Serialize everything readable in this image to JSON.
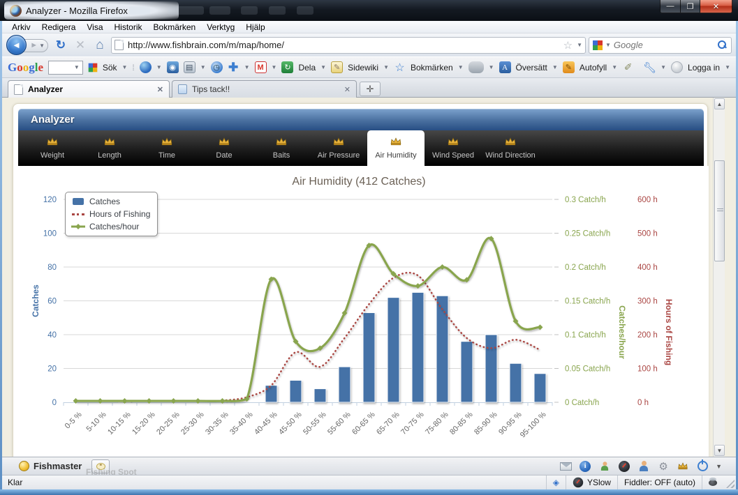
{
  "browser": {
    "window_title": "Analyzer - Mozilla Firefox",
    "menu": [
      "Arkiv",
      "Redigera",
      "Visa",
      "Historik",
      "Bokmärken",
      "Verktyg",
      "Hjälp"
    ],
    "address": {
      "url": "http://www.fishbrain.com/m/map/home/"
    },
    "search": {
      "placeholder": "Google"
    },
    "tabs": [
      {
        "title": "Analyzer"
      },
      {
        "title": "Tips tack!!"
      }
    ],
    "gtoolbar": {
      "logo": "Google",
      "logo_colors": [
        "#3b6cd4",
        "#d8362a",
        "#eeb211",
        "#3b6cd4",
        "#30a04f",
        "#d8362a"
      ],
      "sok": "Sök",
      "dela": "Dela",
      "sidewiki": "Sidewiki",
      "bokmarken": "Bokmärken",
      "oversatt": "Översätt",
      "autofyll": "Autofyll",
      "logga_in": "Logga in"
    },
    "fishmaster": {
      "label": "Fishmaster",
      "ghost": "Fishing Spot"
    },
    "statusbar": {
      "left": "Klar",
      "yslow": "YSlow",
      "fiddler": "Fiddler: OFF (auto)"
    }
  },
  "analyzer": {
    "title": "Analyzer",
    "tabs": [
      {
        "label": "Weight"
      },
      {
        "label": "Length"
      },
      {
        "label": "Time"
      },
      {
        "label": "Date"
      },
      {
        "label": "Baits"
      },
      {
        "label": "Air Pressure"
      },
      {
        "label": "Air Humidity",
        "active": true
      },
      {
        "label": "Wind Speed"
      },
      {
        "label": "Wind Direction"
      }
    ]
  },
  "chart_data": {
    "type": "combo",
    "title": "Air Humidity (412 Catches)",
    "categories": [
      "0-5 %",
      "5-10 %",
      "10-15 %",
      "15-20 %",
      "20-25 %",
      "25-30 %",
      "30-35 %",
      "35-40 %",
      "40-45 %",
      "45-50 %",
      "50-55 %",
      "55-60 %",
      "60-65 %",
      "65-70 %",
      "70-75 %",
      "75-80 %",
      "80-85 %",
      "85-90 %",
      "90-95 %",
      "95-100 %"
    ],
    "series": [
      {
        "name": "Catches",
        "type": "bar",
        "axis": "catches",
        "color": "#4572A7",
        "values": [
          0,
          0,
          1,
          0,
          0,
          0,
          0,
          0,
          10,
          13,
          8,
          21,
          53,
          62,
          65,
          63,
          36,
          40,
          23,
          17
        ]
      },
      {
        "name": "Hours of Fishing",
        "type": "dotted-line",
        "axis": "hours",
        "color": "#AA4643",
        "values": [
          null,
          null,
          null,
          null,
          null,
          null,
          5,
          15,
          50,
          148,
          105,
          190,
          290,
          368,
          375,
          275,
          190,
          160,
          185,
          155
        ]
      },
      {
        "name": "Catches/hour",
        "type": "line",
        "axis": "rate",
        "color": "#89A54E",
        "values": [
          0.002,
          0.002,
          0.002,
          0.002,
          0.002,
          0.002,
          0.002,
          0.005,
          0.182,
          0.09,
          0.08,
          0.132,
          0.232,
          0.19,
          0.172,
          0.2,
          0.181,
          0.242,
          0.12,
          0.111
        ]
      }
    ],
    "axes": {
      "catches": {
        "title": "Catches",
        "side": "left",
        "color": "#4572A7",
        "min": 0,
        "max": 120,
        "ticks": [
          0,
          20,
          40,
          60,
          80,
          100,
          120
        ]
      },
      "rate": {
        "title": "Catches/hour",
        "side": "right",
        "color": "#89A54E",
        "min": 0,
        "max": 0.3,
        "tick_labels": [
          "0 Catch/h",
          "0.05 Catch/h",
          "0.1 Catch/h",
          "0.15 Catch/h",
          "0.2 Catch/h",
          "0.25 Catch/h",
          "0.3 Catch/h"
        ]
      },
      "hours": {
        "title": "Hours of Fishing",
        "side": "right",
        "color": "#AA4643",
        "min": 0,
        "max": 600,
        "tick_labels": [
          "0 h",
          "100 h",
          "200 h",
          "300 h",
          "400 h",
          "500 h",
          "600 h"
        ]
      }
    },
    "legend": [
      "Catches",
      "Hours of Fishing",
      "Catches/hour"
    ],
    "legend_position": "top-left",
    "grid": true,
    "xlabel_rotation": -45
  }
}
